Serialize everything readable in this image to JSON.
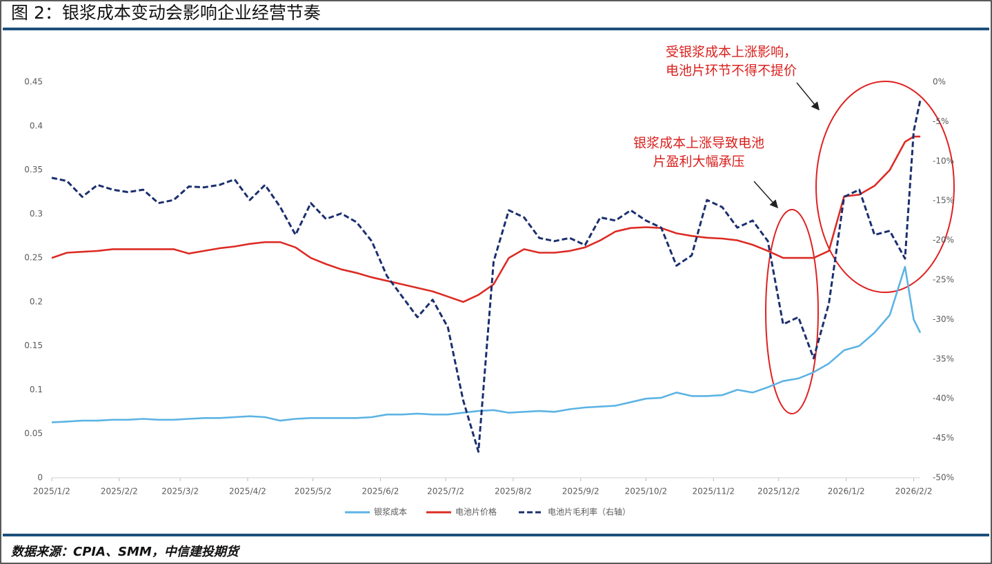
{
  "title": "图 2：银浆成本变动会影响企业经营节奏",
  "source": "数据来源：CPIA、SMM，中信建投期货",
  "chart_data": {
    "type": "line",
    "x": [
      "2025/1/2",
      "2025/1/9",
      "2025/1/16",
      "2025/1/23",
      "2025/1/30",
      "2025/2/6",
      "2025/2/13",
      "2025/2/20",
      "2025/2/27",
      "2025/3/6",
      "2025/3/13",
      "2025/3/20",
      "2025/3/27",
      "2025/4/3",
      "2025/4/10",
      "2025/4/17",
      "2025/4/24",
      "2025/5/1",
      "2025/5/8",
      "2025/5/15",
      "2025/5/22",
      "2025/5/29",
      "2025/6/5",
      "2025/6/12",
      "2025/6/19",
      "2025/6/26",
      "2025/7/3",
      "2025/7/10",
      "2025/7/17",
      "2025/7/24",
      "2025/7/31",
      "2025/8/7",
      "2025/8/14",
      "2025/8/21",
      "2025/8/28",
      "2025/9/4",
      "2025/9/11",
      "2025/9/18",
      "2025/9/25",
      "2025/10/2",
      "2025/10/9",
      "2025/10/16",
      "2025/10/23",
      "2025/10/30",
      "2025/11/6",
      "2025/11/13",
      "2025/11/20",
      "2025/11/27",
      "2025/12/4",
      "2025/12/11",
      "2025/12/18",
      "2025/12/25",
      "2026/1/1",
      "2026/1/8",
      "2026/1/15",
      "2026/1/22",
      "2026/1/29",
      "2026/2/2",
      "2026/2/5"
    ],
    "xlim": [
      "2025/1/2",
      "2026/2/5"
    ],
    "xticks": [
      "2025/1/2",
      "2025/2/2",
      "2025/3/2",
      "2025/4/2",
      "2025/5/2",
      "2025/6/2",
      "2025/7/2",
      "2025/8/2",
      "2025/9/2",
      "2025/10/2",
      "2025/11/2",
      "2025/12/2",
      "2026/1/2",
      "2026/2/2"
    ],
    "ylim": [
      0,
      0.45
    ],
    "yticks": [
      0,
      0.05,
      0.1,
      0.15,
      0.2,
      0.25,
      0.3,
      0.35,
      0.4,
      0.45
    ],
    "y2lim": [
      -50,
      0
    ],
    "y2ticks": [
      {
        "value": -50,
        "label": "-50%"
      },
      {
        "value": -45,
        "label": "-45%"
      },
      {
        "value": -40,
        "label": "-40%"
      },
      {
        "value": -35,
        "label": "-35%"
      },
      {
        "value": -30,
        "label": "-30%"
      },
      {
        "value": -25,
        "label": "-25%"
      },
      {
        "value": -20,
        "label": "-20%"
      },
      {
        "value": -15,
        "label": "-15%"
      },
      {
        "value": -10,
        "label": "-10%"
      },
      {
        "value": -5,
        "label": "-5%"
      },
      {
        "value": 0,
        "label": "0%"
      }
    ],
    "series": [
      {
        "name": "银浆成本",
        "color": "#5cb3e4",
        "line_style": "solid",
        "values": [
          0.063,
          0.064,
          0.065,
          0.065,
          0.066,
          0.066,
          0.067,
          0.066,
          0.066,
          0.067,
          0.068,
          0.068,
          0.069,
          0.07,
          0.069,
          0.065,
          0.067,
          0.068,
          0.068,
          0.068,
          0.068,
          0.069,
          0.072,
          0.072,
          0.073,
          0.072,
          0.072,
          0.074,
          0.076,
          0.077,
          0.074,
          0.075,
          0.076,
          0.075,
          0.078,
          0.08,
          0.081,
          0.082,
          0.086,
          0.09,
          0.091,
          0.097,
          0.093,
          0.093,
          0.094,
          0.1,
          0.097,
          0.103,
          0.11,
          0.113,
          0.12,
          0.13,
          0.145,
          0.15,
          0.165,
          0.185,
          0.24,
          0.18,
          0.165
        ]
      },
      {
        "name": "电池片价格",
        "color": "#dc2b24",
        "line_style": "solid",
        "values": [
          0.25,
          0.256,
          0.257,
          0.258,
          0.26,
          0.26,
          0.26,
          0.26,
          0.26,
          0.255,
          0.258,
          0.261,
          0.263,
          0.266,
          0.268,
          0.268,
          0.262,
          0.25,
          0.243,
          0.237,
          0.233,
          0.228,
          0.224,
          0.22,
          0.216,
          0.212,
          0.206,
          0.2,
          0.208,
          0.22,
          0.25,
          0.26,
          0.256,
          0.256,
          0.258,
          0.262,
          0.27,
          0.28,
          0.284,
          0.285,
          0.284,
          0.278,
          0.275,
          0.273,
          0.272,
          0.27,
          0.265,
          0.258,
          0.25,
          0.25,
          0.25,
          0.258,
          0.32,
          0.322,
          0.332,
          0.35,
          0.382,
          0.388,
          0.388
        ]
      },
      {
        "name": "电池片毛利率（右轴）",
        "color": "#1b2f6e",
        "line_style": "dashed",
        "axis": "y2",
        "values": [
          -12.1,
          -12.5,
          -14.5,
          -13,
          -13.6,
          -13.9,
          -13.6,
          -15.3,
          -14.9,
          -13.2,
          -13.3,
          -13,
          -12.3,
          -14.9,
          -13,
          -15.8,
          -19.3,
          -15.3,
          -17.3,
          -16.6,
          -17.7,
          -20.1,
          -24.5,
          -27.1,
          -29.7,
          -27.5,
          -31,
          -40.2,
          -46.7,
          -22.7,
          -16.2,
          -17.1,
          -19.7,
          -20.1,
          -19.7,
          -20.6,
          -17.1,
          -17.5,
          -16.2,
          -17.5,
          -18.4,
          -23.2,
          -21.9,
          -14.9,
          -15.8,
          -18.4,
          -17.5,
          -20.1,
          -30.6,
          -29.7,
          -34.9,
          -28,
          -14.5,
          -13.6,
          -19.3,
          -18.8,
          -22.3,
          -6.2,
          -2.3
        ]
      }
    ],
    "legend": "bottom",
    "annotations": [
      {
        "lines": [
          "受银浆成本上涨影响，",
          "电池片环节不得不提价"
        ],
        "color": "#d9201e"
      },
      {
        "lines": [
          "银浆成本上涨导致电池",
          "片盈利大幅承压"
        ],
        "color": "#d9201e"
      }
    ]
  }
}
